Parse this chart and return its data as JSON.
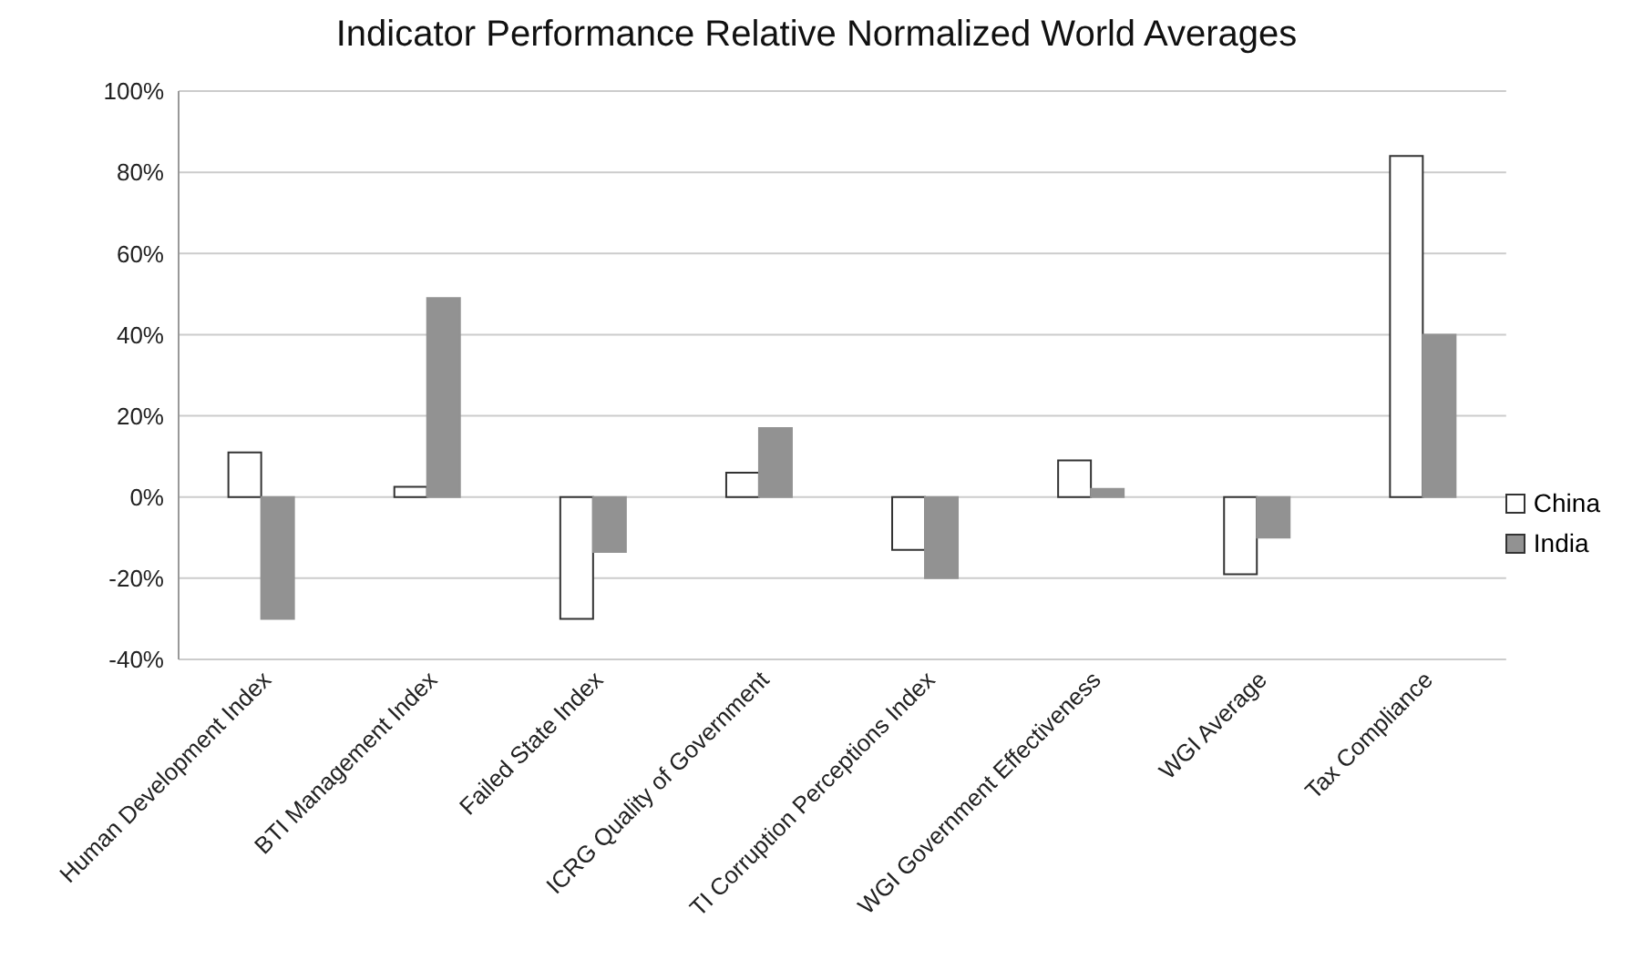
{
  "chart_data": {
    "type": "bar",
    "title": "Indicator Performance Relative Normalized World Averages",
    "categories": [
      "Human Development Index",
      "BTI Management Index",
      "Failed State Index",
      "ICRG Quality of Government",
      "TI Corruption Perceptions Index",
      "WGI Government Effectiveness",
      "WGI Average",
      "Tax Compliance"
    ],
    "series": [
      {
        "name": "China",
        "color": "#ffffff",
        "values": [
          11,
          2.5,
          -30,
          6,
          -13,
          9,
          -19,
          84
        ]
      },
      {
        "name": "India",
        "color": "#929292",
        "values": [
          -30,
          49,
          -13.5,
          17,
          -20,
          2,
          -10,
          40
        ]
      }
    ],
    "ylim": [
      -40,
      100
    ],
    "yticks": [
      {
        "value": -40,
        "label": "-40%"
      },
      {
        "value": -20,
        "label": "-20%"
      },
      {
        "value": 0,
        "label": "0%"
      },
      {
        "value": 20,
        "label": "20%"
      },
      {
        "value": 40,
        "label": "40%"
      },
      {
        "value": 60,
        "label": "60%"
      },
      {
        "value": 80,
        "label": "80%"
      },
      {
        "value": 100,
        "label": "100%"
      }
    ],
    "grid": "y",
    "legend": "right"
  }
}
